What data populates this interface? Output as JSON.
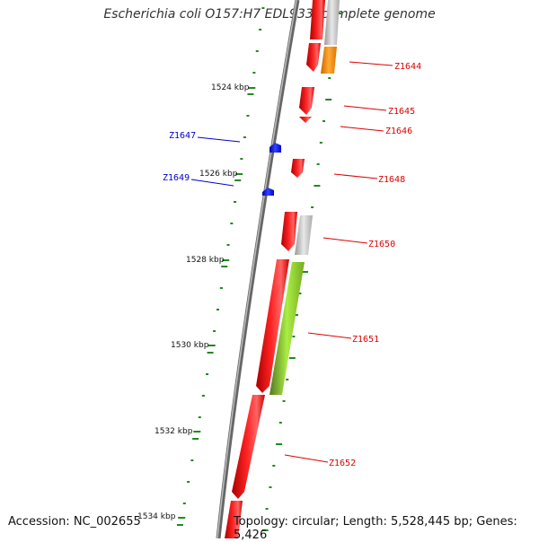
{
  "title": "Escherichia coli O157:H7 EDL933, complete genome",
  "footer": {
    "accession": "Accession: NC_002655",
    "topology": "Topology: circular; Length: 5,528,445 bp; Genes: 5,426"
  },
  "colors": {
    "forward_gene": "#ff0000",
    "reverse_gene": "#0000ff",
    "orange_feature": "#ff9900",
    "grey_feature": "#c0c0c0",
    "green_feature": "#99dd33",
    "tick": "#228822",
    "backbone": "#888888"
  },
  "ticks": [
    "1524 kbp",
    "1526 kbp",
    "1528 kbp",
    "1530 kbp",
    "1532 kbp",
    "1534 kbp"
  ],
  "genes": [
    {
      "label": "Z1644",
      "strand": "forward"
    },
    {
      "label": "Z1645",
      "strand": "forward"
    },
    {
      "label": "Z1646",
      "strand": "forward"
    },
    {
      "label": "Z1647",
      "strand": "reverse"
    },
    {
      "label": "Z1648",
      "strand": "forward"
    },
    {
      "label": "Z1649",
      "strand": "reverse"
    },
    {
      "label": "Z1650",
      "strand": "forward"
    },
    {
      "label": "Z1651",
      "strand": "forward"
    },
    {
      "label": "Z1652",
      "strand": "forward"
    }
  ]
}
